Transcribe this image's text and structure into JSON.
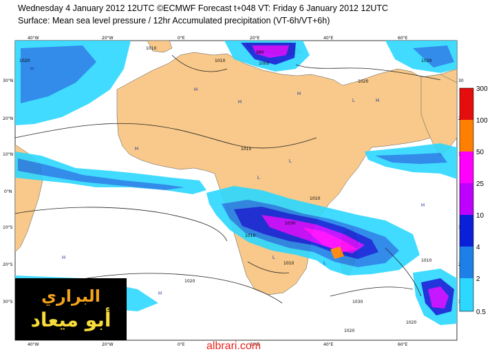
{
  "header": {
    "line1": "Wednesday 4 January 2012 12UTC ©ECMWF Forecast t+048 VT: Friday 6 January 2012 12UTC",
    "line2": "Surface: Mean sea level pressure / 12hr Accumulated precipitation (VT-6h/VT+6h)"
  },
  "map": {
    "lon_labels_top": [
      "40°W",
      "20°W",
      "0°E",
      "20°E",
      "40°E",
      "60°E"
    ],
    "lon_labels_bottom": [
      "40°W",
      "20°W",
      "0°E",
      "20°E",
      "40°E",
      "60°E"
    ],
    "lat_labels_left": [
      "30°N",
      "20°N",
      "10°N",
      "0°N",
      "10°S",
      "20°S",
      "30°S"
    ],
    "lat_labels_right": [
      "30",
      "20",
      "10",
      "0",
      "10",
      "20",
      "30"
    ],
    "isobar_labels": [
      "1020",
      "1030",
      "1020",
      "1010",
      "1010",
      "1030",
      "1010",
      "1010",
      "1010",
      "1020",
      "1020",
      "1020",
      "1020",
      "1010",
      "1000",
      "980",
      "1010"
    ],
    "high_marks": [
      "H",
      "H",
      "H",
      "H",
      "H",
      "H",
      "H",
      "H",
      "H"
    ],
    "low_marks": [
      "L",
      "L",
      "L",
      "L",
      "L"
    ],
    "land_color": "#f8c98a",
    "sea_color": "#ffffff"
  },
  "legend": {
    "ticks": [
      "300",
      "100",
      "50",
      "25",
      "10",
      "4",
      "2",
      "0.5"
    ],
    "colors": [
      "#e50d0d",
      "#ff8000",
      "#ff00ff",
      "#c000ff",
      "#0a20d8",
      "#1e7fe8",
      "#2cd8ff"
    ]
  },
  "logo": {
    "line1": "البراري",
    "line2": "أبو ميعاد"
  },
  "footer": {
    "watermark": "albrari.com"
  }
}
